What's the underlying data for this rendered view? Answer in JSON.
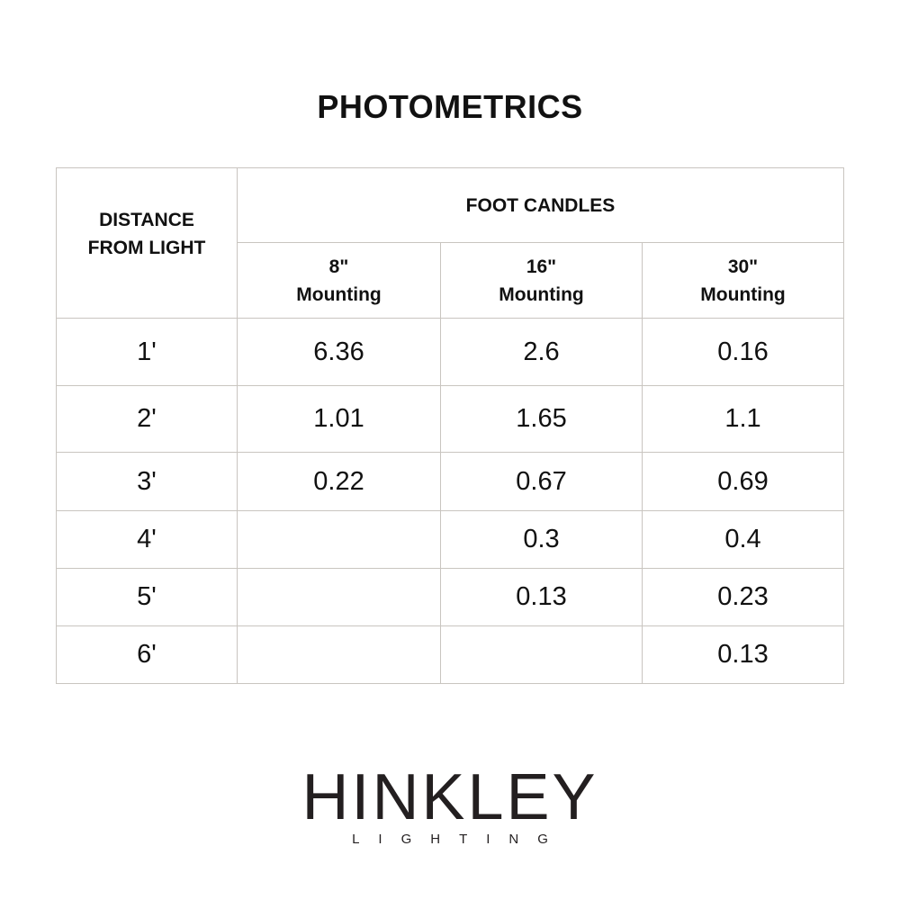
{
  "title": "PHOTOMETRICS",
  "table": {
    "row_header": "DISTANCE\nFROM LIGHT",
    "group_header": "FOOT CANDLES",
    "columns": [
      {
        "size": "8\"",
        "label": "Mounting"
      },
      {
        "size": "16\"",
        "label": "Mounting"
      },
      {
        "size": "30\"",
        "label": "Mounting"
      }
    ],
    "rows": [
      {
        "distance": "1'",
        "values": [
          "6.36",
          "2.6",
          "0.16"
        ]
      },
      {
        "distance": "2'",
        "values": [
          "1.01",
          "1.65",
          "1.1"
        ]
      },
      {
        "distance": "3'",
        "values": [
          "0.22",
          "0.67",
          "0.69"
        ]
      },
      {
        "distance": "4'",
        "values": [
          "",
          "0.3",
          "0.4"
        ]
      },
      {
        "distance": "5'",
        "values": [
          "",
          "0.13",
          "0.23"
        ]
      },
      {
        "distance": "6'",
        "values": [
          "",
          "",
          "0.13"
        ]
      }
    ]
  },
  "logo": {
    "brand": "HINKLEY",
    "sub": "LIGHTING"
  }
}
